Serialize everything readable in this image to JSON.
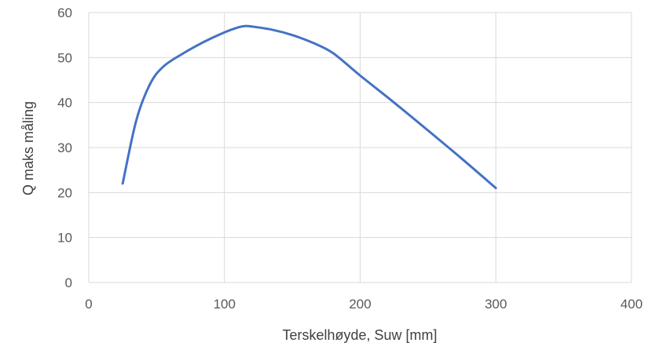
{
  "chart_data": {
    "type": "line",
    "xlabel": "Terskelhøyde, Suw [mm]",
    "ylabel": "Q maks måling",
    "xlim": [
      0,
      400
    ],
    "ylim": [
      0,
      60
    ],
    "x_ticks": [
      0,
      100,
      200,
      300,
      400
    ],
    "y_ticks": [
      0,
      10,
      20,
      30,
      40,
      50,
      60
    ],
    "grid": true,
    "series": [
      {
        "color": "#4472c4",
        "x": [
          25,
          35,
          45,
          55,
          70,
          85,
          100,
          110,
          115,
          120,
          135,
          150,
          165,
          180,
          200,
          225,
          250,
          275,
          300
        ],
        "y": [
          22,
          36,
          44,
          48,
          51,
          53.5,
          55.6,
          56.7,
          57,
          56.9,
          56.2,
          55,
          53.3,
          51,
          46,
          40,
          33.8,
          27.5,
          21
        ]
      }
    ]
  }
}
